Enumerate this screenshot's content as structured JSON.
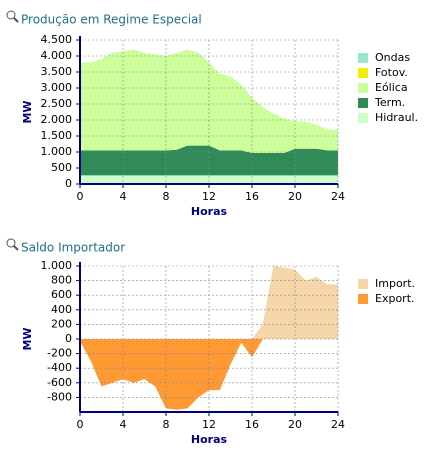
{
  "chart_data": [
    {
      "type": "area",
      "title": "Produção em Regime Especial",
      "x_label": "Horas",
      "y_label": "MW",
      "stacked": true,
      "grid": true,
      "x": [
        0,
        1,
        2,
        3,
        4,
        5,
        6,
        7,
        8,
        9,
        10,
        11,
        12,
        13,
        14,
        15,
        16,
        17,
        18,
        19,
        20,
        21,
        22,
        23,
        24
      ],
      "xlim": [
        0,
        24
      ],
      "xticks": [
        0,
        4,
        8,
        12,
        16,
        20,
        24
      ],
      "ylim": [
        0,
        4500
      ],
      "yticks": [
        0,
        500,
        {
          "value": 1000,
          "label": "1.000"
        },
        {
          "value": 1500,
          "label": "1.500"
        },
        {
          "value": 2000,
          "label": "2.000"
        },
        {
          "value": 2500,
          "label": "2.500"
        },
        {
          "value": 3000,
          "label": "3.000"
        },
        {
          "value": 3500,
          "label": "3.500"
        },
        {
          "value": 4000,
          "label": "4.000"
        },
        {
          "value": 4500,
          "label": "4.500"
        }
      ],
      "series": [
        {
          "name": "Ondas",
          "color": "#99e6cc",
          "values": [
            0,
            0,
            0,
            0,
            0,
            0,
            0,
            0,
            0,
            0,
            0,
            0,
            0,
            0,
            0,
            0,
            0,
            0,
            0,
            0,
            0,
            0,
            0,
            0,
            0
          ]
        },
        {
          "name": "Fotov.",
          "color": "#f0f000",
          "values": [
            0,
            0,
            0,
            0,
            0,
            0,
            0,
            0,
            0,
            0,
            0,
            0,
            0,
            0,
            0,
            0,
            0,
            0,
            0,
            0,
            0,
            0,
            0,
            0,
            0
          ]
        },
        {
          "name": "Eólica",
          "color": "#ccff99",
          "values": [
            2730,
            2750,
            2850,
            3050,
            3100,
            3150,
            3050,
            3000,
            2950,
            3030,
            3000,
            2900,
            2600,
            2400,
            2300,
            2050,
            1730,
            1430,
            1230,
            1080,
            850,
            850,
            750,
            650,
            650
          ]
        },
        {
          "name": "Term.",
          "color": "#2e8b57",
          "values": [
            780,
            780,
            780,
            780,
            780,
            780,
            780,
            780,
            780,
            800,
            930,
            930,
            930,
            780,
            780,
            780,
            700,
            700,
            700,
            700,
            830,
            830,
            830,
            780,
            780
          ]
        },
        {
          "name": "Hidraul.",
          "color": "#ccffcc",
          "values": [
            270,
            270,
            270,
            270,
            270,
            270,
            270,
            270,
            270,
            270,
            270,
            270,
            270,
            270,
            270,
            270,
            270,
            270,
            270,
            270,
            270,
            270,
            270,
            270,
            270
          ]
        }
      ]
    },
    {
      "type": "area",
      "title": "Saldo Importador",
      "x_label": "Horas",
      "y_label": "MW",
      "stacked": false,
      "grid": true,
      "x": [
        0,
        1,
        2,
        3,
        4,
        5,
        6,
        7,
        8,
        9,
        10,
        11,
        12,
        13,
        14,
        15,
        16,
        17,
        18,
        19,
        20,
        21,
        22,
        23,
        24
      ],
      "xlim": [
        0,
        24
      ],
      "xticks": [
        0,
        4,
        8,
        12,
        16,
        20,
        24
      ],
      "ylim": [
        -1000,
        1000
      ],
      "yticks": [
        -800,
        -600,
        -400,
        -200,
        0,
        200,
        400,
        600,
        800,
        {
          "value": 1000,
          "label": "1.000"
        }
      ],
      "series": [
        {
          "name": "Import.",
          "color": "#f5d6a8",
          "values": [
            0,
            0,
            0,
            0,
            0,
            0,
            0,
            0,
            0,
            0,
            0,
            0,
            0,
            0,
            0,
            0,
            0,
            200,
            1000,
            980,
            950,
            800,
            850,
            750,
            750
          ]
        },
        {
          "name": "Export.",
          "color": "#ff9933",
          "values": [
            -30,
            -300,
            -650,
            -600,
            -550,
            -600,
            -550,
            -650,
            -950,
            -970,
            -950,
            -800,
            -700,
            -700,
            -350,
            -50,
            -250,
            0,
            0,
            0,
            0,
            0,
            0,
            0,
            0
          ]
        }
      ]
    }
  ]
}
